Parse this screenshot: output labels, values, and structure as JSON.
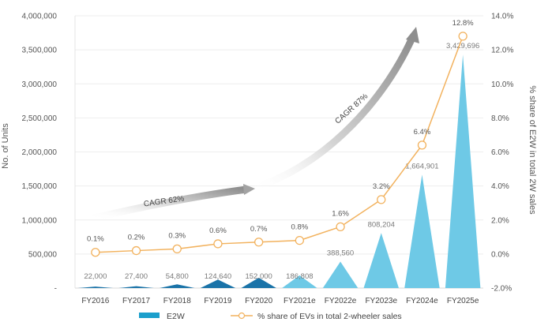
{
  "chart_data": {
    "type": "bar+line",
    "categories": [
      "FY2016",
      "FY2017",
      "FY2018",
      "FY2019",
      "FY2020",
      "FY2021e",
      "FY2022e",
      "FY2023e",
      "FY2024e",
      "FY2025e"
    ],
    "series": [
      {
        "name": "E2W",
        "axis": "left",
        "values": [
          22000,
          27400,
          54800,
          124640,
          152000,
          186808,
          388560,
          808204,
          1664901,
          3429696
        ],
        "labels": [
          "22,000",
          "27,400",
          "54,800",
          "124,640",
          "152,000",
          "186,808",
          "388,560",
          "808,204",
          "1,664,901",
          "3,429,696"
        ]
      },
      {
        "name": "% share of EVs in total 2-wheeler sales",
        "axis": "right",
        "values": [
          0.1,
          0.2,
          0.3,
          0.6,
          0.7,
          0.8,
          1.6,
          3.2,
          6.4,
          12.8
        ],
        "labels": [
          "0.1%",
          "0.2%",
          "0.3%",
          "0.6%",
          "0.7%",
          "0.8%",
          "1.6%",
          "3.2%",
          "6.4%",
          "12.8%"
        ]
      }
    ],
    "ylabel": "No. of Units",
    "y2label": "% share of E2W in total 2W sales",
    "ylim": [
      0,
      4000000
    ],
    "y2lim": [
      -2,
      14
    ],
    "yticks": [
      0,
      500000,
      1000000,
      1500000,
      2000000,
      2500000,
      3000000,
      3500000,
      4000000
    ],
    "ytick_labels": [
      "-",
      "500,000",
      "1,000,000",
      "1,500,000",
      "2,000,000",
      "2,500,000",
      "3,000,000",
      "3,500,000",
      "4,000,000"
    ],
    "y2ticks": [
      -2,
      0,
      2,
      4,
      6,
      8,
      10,
      12,
      14
    ],
    "y2tick_labels": [
      "-2.0%",
      "0.0%",
      "2.0%",
      "4.0%",
      "6.0%",
      "8.0%",
      "10.0%",
      "12.0%",
      "14.0%"
    ],
    "annotations": [
      {
        "text": "CAGR 62%"
      },
      {
        "text": "CAGR 87%"
      }
    ],
    "legend": [
      "E2W",
      "% share of EVs in total 2-wheeler sales"
    ],
    "legend_position": "bottom",
    "colors": {
      "bar_dark": "#1a73a8",
      "bar_light": "#6ec9e6",
      "line": "#f2b25e",
      "marker_fill": "#ffffff",
      "arrow": "#a8a8a8"
    }
  }
}
